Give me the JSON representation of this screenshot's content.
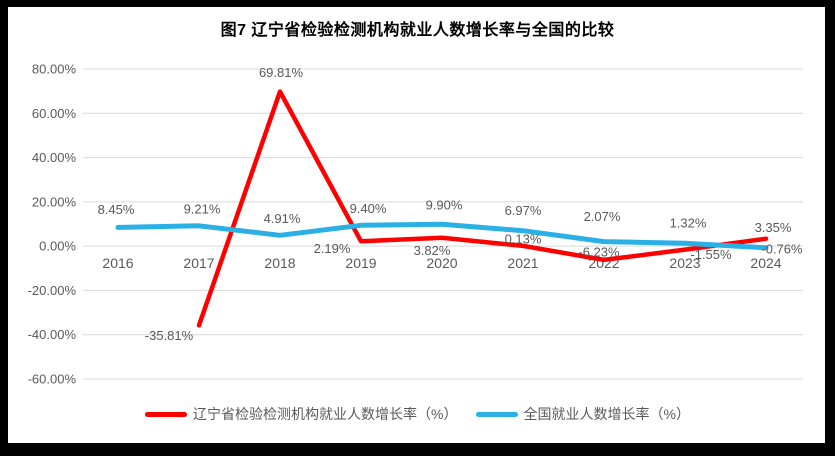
{
  "chart_data": {
    "type": "line",
    "title": "图7 辽宁省检验检测机构就业人数增长率与全国的比较",
    "categories": [
      "2016",
      "2017",
      "2018",
      "2019",
      "2020",
      "2021",
      "2022",
      "2023",
      "2024"
    ],
    "xlabel": "",
    "ylabel": "",
    "ylim": [
      -60,
      80
    ],
    "grid": true,
    "legend_position": "bottom",
    "y_axis": [
      {
        "value": 80,
        "label": "80.00%"
      },
      {
        "value": 60,
        "label": "60.00%"
      },
      {
        "value": 40,
        "label": "40.00%"
      },
      {
        "value": 20,
        "label": "20.00%"
      },
      {
        "value": 0,
        "label": "0.00%"
      },
      {
        "value": -20,
        "label": "-20.00%"
      },
      {
        "value": -40,
        "label": "-40.00%"
      },
      {
        "value": -60,
        "label": "-60.00%"
      }
    ],
    "series": [
      {
        "name": "辽宁省检验检测机构就业人数增长率（%）",
        "color": "#FE0000",
        "stroke_width": 4.5,
        "values": [
          null,
          -35.81,
          69.81,
          2.19,
          3.82,
          0.13,
          -6.23,
          -1.55,
          3.35
        ],
        "labels": [
          null,
          "-35.81%",
          "69.81%",
          "2.19%",
          "3.82%",
          "0.13%",
          "-6.23%",
          "-1.55%",
          "3.35%"
        ],
        "label_offsets": [
          null,
          [
            -30,
            10
          ],
          [
            1,
            -19
          ],
          [
            -29,
            7
          ],
          [
            -10,
            13
          ],
          [
            0,
            -7
          ],
          [
            -5,
            -8
          ],
          [
            26,
            5
          ],
          [
            7,
            -11
          ]
        ]
      },
      {
        "name": "全国就业人数增长率（%）",
        "color": "#2BB0E6",
        "stroke_width": 5,
        "values": [
          8.45,
          9.21,
          4.91,
          9.4,
          9.9,
          6.97,
          2.07,
          1.32,
          -0.76
        ],
        "labels": [
          "8.45%",
          "9.21%",
          "4.91%",
          "9.40%",
          "9.90%",
          "6.97%",
          "2.07%",
          "1.32%",
          "-0.76%"
        ],
        "label_offsets": [
          [
            -2,
            -18
          ],
          [
            3,
            -17
          ],
          [
            2,
            -17
          ],
          [
            7,
            -17
          ],
          [
            2,
            -19
          ],
          [
            0,
            -20
          ],
          [
            -2,
            -25
          ],
          [
            3,
            -20
          ],
          [
            16,
            1
          ]
        ]
      }
    ],
    "colors": {
      "grid": "#D9D9D9",
      "axis_text": "#595959",
      "data_label_text": "#595959",
      "frame": "#000000",
      "surface": "#ffffff"
    }
  }
}
